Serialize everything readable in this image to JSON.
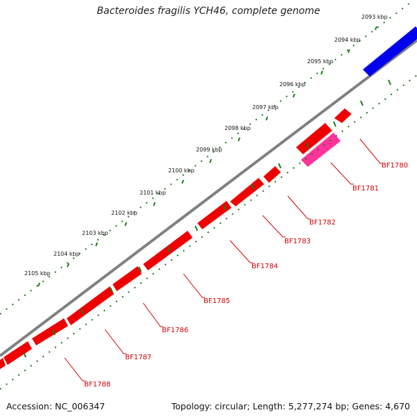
{
  "title": "Bacteroides fragilis YCH46, complete genome",
  "footer": {
    "accession": "Accession: NC_006347",
    "summary": "Topology: circular; Length: 5,277,274 bp; Genes: 4,670"
  },
  "colors": {
    "forward_gene": "#ff0000",
    "highlight_gene": "#ff3399",
    "other_gene": "#0000ee",
    "backbone": "#808080",
    "ticks": "#1a7a1a",
    "label": "#d40000"
  },
  "kbp_labels": [
    "2093 kbp",
    "2094 kbp",
    "2095 kbp",
    "2096 kbp",
    "2097 kbp",
    "2098 kbp",
    "2099 kbp",
    "2100 kbp",
    "2101 kbp",
    "2102 kbp",
    "2103 kbp",
    "2104 kbp",
    "2105 kbp"
  ],
  "genes": [
    {
      "label": "BF1780",
      "color": "red"
    },
    {
      "label": "BF1781",
      "color": "pink"
    },
    {
      "label": "BF1782",
      "color": "red"
    },
    {
      "label": "BF1783",
      "color": "red"
    },
    {
      "label": "BF1784",
      "color": "red"
    },
    {
      "label": "BF1785",
      "color": "red"
    },
    {
      "label": "BF1786",
      "color": "red"
    },
    {
      "label": "BF1787",
      "color": "red"
    },
    {
      "label": "BF1788",
      "color": "red"
    }
  ]
}
